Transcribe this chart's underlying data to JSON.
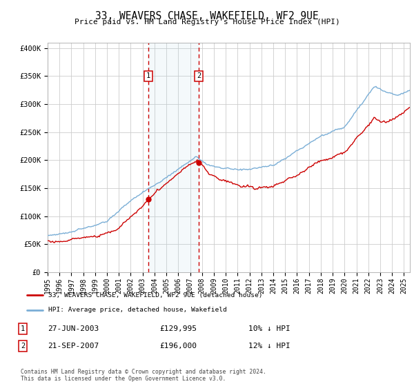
{
  "title": "33, WEAVERS CHASE, WAKEFIELD, WF2 9UE",
  "subtitle": "Price paid vs. HM Land Registry's House Price Index (HPI)",
  "background_color": "#ffffff",
  "grid_color": "#cccccc",
  "ylim": [
    0,
    410000
  ],
  "yticks": [
    0,
    50000,
    100000,
    150000,
    200000,
    250000,
    300000,
    350000,
    400000
  ],
  "ytick_labels": [
    "£0",
    "£50K",
    "£100K",
    "£150K",
    "£200K",
    "£250K",
    "£300K",
    "£350K",
    "£400K"
  ],
  "hpi_color": "#7aaed6",
  "price_color": "#cc0000",
  "sale1_date": 2003.49,
  "sale1_price": 129995,
  "sale2_date": 2007.72,
  "sale2_price": 196000,
  "legend_entry1": "33, WEAVERS CHASE, WAKEFIELD, WF2 9UE (detached house)",
  "legend_entry2": "HPI: Average price, detached house, Wakefield",
  "table_row1": [
    "1",
    "27-JUN-2003",
    "£129,995",
    "10% ↓ HPI"
  ],
  "table_row2": [
    "2",
    "21-SEP-2007",
    "£196,000",
    "12% ↓ HPI"
  ],
  "footnote": "Contains HM Land Registry data © Crown copyright and database right 2024.\nThis data is licensed under the Open Government Licence v3.0.",
  "xmin": 1995.0,
  "xmax": 2025.5,
  "xticks": [
    1995,
    1996,
    1997,
    1998,
    1999,
    2000,
    2001,
    2002,
    2003,
    2004,
    2005,
    2006,
    2007,
    2008,
    2009,
    2010,
    2011,
    2012,
    2013,
    2014,
    2015,
    2016,
    2017,
    2018,
    2019,
    2020,
    2021,
    2022,
    2023,
    2024,
    2025
  ]
}
